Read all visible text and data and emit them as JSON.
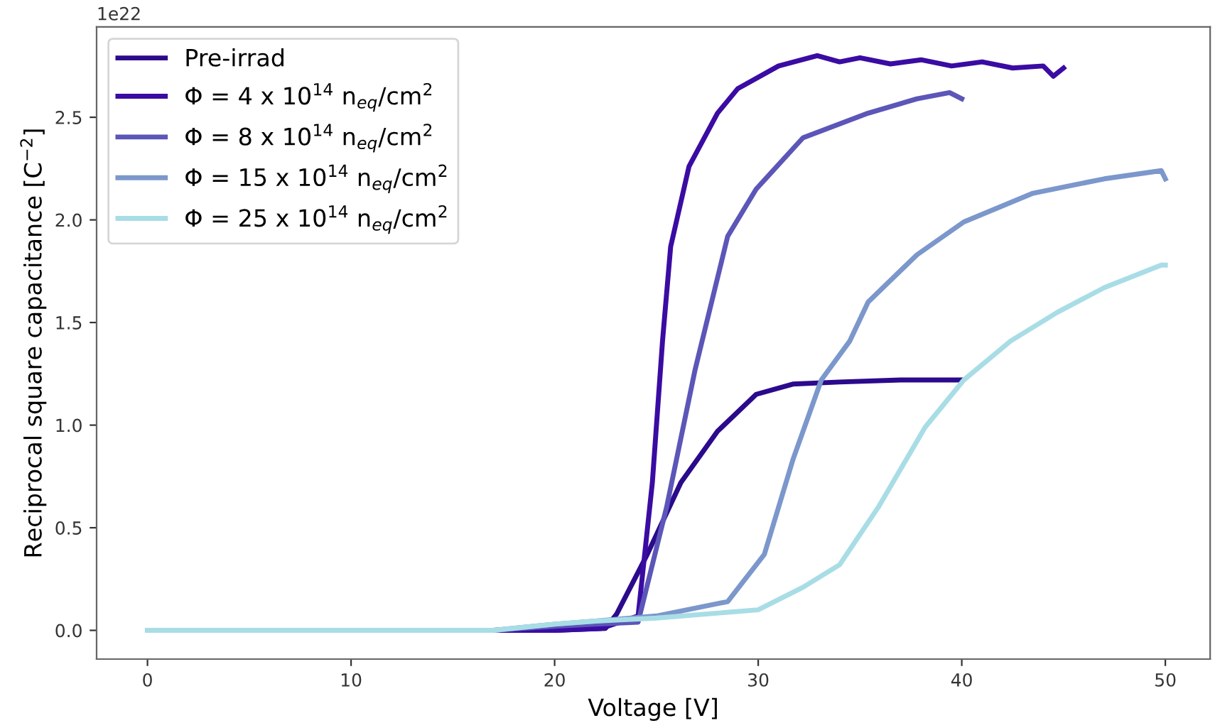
{
  "chart_data": {
    "type": "line",
    "xlabel": "Voltage [V]",
    "ylabel": "Reciprocal square capacitance [C$^{−2}$]",
    "annotations": [
      "1e22"
    ],
    "xlim": [
      -2.5,
      52.2
    ],
    "xticks": [
      0,
      10,
      20,
      30,
      40,
      50
    ],
    "ylim": [
      -0.14,
      2.94
    ],
    "yticks": [
      {
        "value": 0,
        "label": "0.0"
      },
      {
        "value": 0.5,
        "label": "0.5"
      },
      {
        "value": 1,
        "label": "1.0"
      },
      {
        "value": 1.5,
        "label": "1.5"
      },
      {
        "value": 2,
        "label": "2.0"
      },
      {
        "value": 2.5,
        "label": "2.5"
      }
    ],
    "grid": false,
    "legend": "top left",
    "marker": "none",
    "line_style": "solid",
    "series": [
      {
        "name": "Pre-irrad",
        "color": "#2b0a8c",
        "x": [
          0,
          10,
          20,
          22.5,
          23.05,
          24.55,
          26.2,
          28.0,
          29.9,
          31.7,
          34,
          37,
          40
        ],
        "values": [
          0,
          0,
          0,
          0.01,
          0.08,
          0.37,
          0.72,
          0.97,
          1.15,
          1.2,
          1.21,
          1.22,
          1.22
        ]
      },
      {
        "name": "Φ = 4 x 10$^{14}$ n$_{eq}$/cm$^{2}$",
        "color": "#3a0ca3",
        "x": [
          0,
          10,
          20,
          22.3,
          24.1,
          24.8,
          25.3,
          25.7,
          26.6,
          28.0,
          29.0,
          31.0,
          32.9,
          34,
          35,
          36.5,
          38,
          39.5,
          41,
          42.5,
          44,
          44.5,
          45
        ],
        "values": [
          0,
          0,
          0,
          0.01,
          0.07,
          0.72,
          1.41,
          1.87,
          2.26,
          2.52,
          2.64,
          2.75,
          2.8,
          2.77,
          2.79,
          2.76,
          2.78,
          2.75,
          2.77,
          2.74,
          2.75,
          2.7,
          2.74
        ]
      },
      {
        "name": "Φ = 8 x 10$^{14}$ n$_{eq}$/cm$^{2}$",
        "color": "#5c56b8",
        "x": [
          0,
          10,
          17,
          20,
          22,
          24.1,
          25.5,
          26.9,
          28.5,
          29.9,
          32.2,
          35.4,
          37.8,
          39.4,
          40
        ],
        "values": [
          0,
          0,
          0,
          0.02,
          0.03,
          0.04,
          0.6,
          1.27,
          1.92,
          2.15,
          2.4,
          2.52,
          2.59,
          2.62,
          2.59
        ]
      },
      {
        "name": "Φ = 15 x 10$^{14}$ n$_{eq}$/cm$^{2}$",
        "color": "#7b97cc",
        "x": [
          0,
          10,
          17,
          20,
          22,
          25,
          28.5,
          30.3,
          31.7,
          33.1,
          34.5,
          35.4,
          37.8,
          40.1,
          43.5,
          47.0,
          49.8,
          50
        ],
        "values": [
          0,
          0,
          0,
          0.03,
          0.045,
          0.07,
          0.14,
          0.37,
          0.83,
          1.22,
          1.41,
          1.6,
          1.83,
          1.99,
          2.13,
          2.2,
          2.24,
          2.2
        ]
      },
      {
        "name": "Φ = 25 x 10$^{14}$ n$_{eq}$/cm$^{2}$",
        "color": "#a8dde6",
        "x": [
          0,
          10,
          17,
          20,
          22,
          25,
          30,
          32.2,
          34.0,
          35.9,
          38.2,
          40.1,
          42.4,
          44.7,
          47.0,
          49.8,
          50
        ],
        "values": [
          0,
          0,
          0,
          0.03,
          0.045,
          0.06,
          0.1,
          0.21,
          0.32,
          0.6,
          0.99,
          1.22,
          1.41,
          1.55,
          1.67,
          1.78,
          1.78
        ]
      }
    ]
  }
}
